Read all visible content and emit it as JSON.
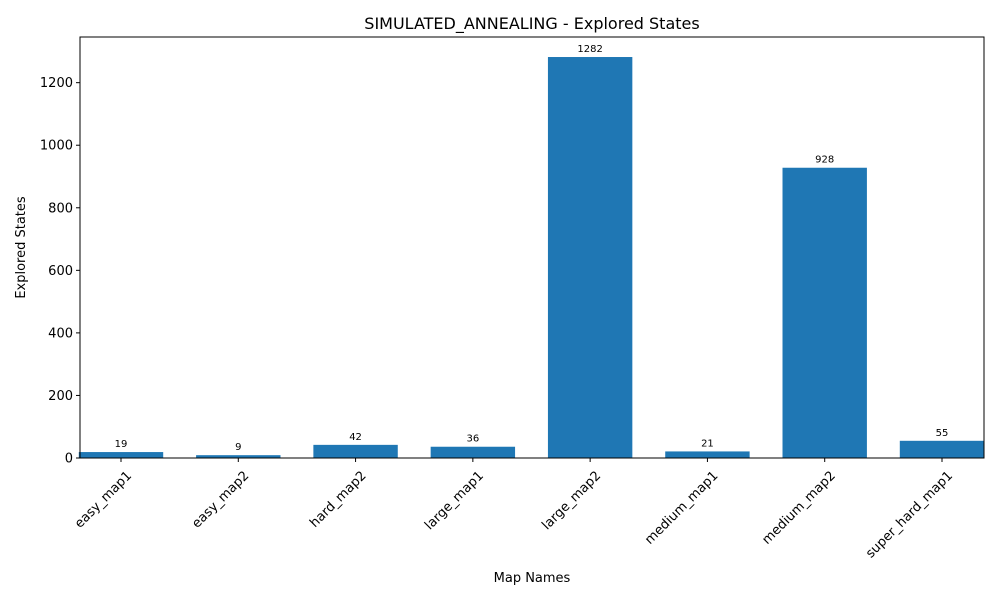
{
  "chart_data": {
    "type": "bar",
    "title": "SIMULATED_ANNEALING - Explored States",
    "xlabel": "Map Names",
    "ylabel": "Explored States",
    "categories": [
      "easy_map1",
      "easy_map2",
      "hard_map2",
      "large_map1",
      "large_map2",
      "medium_map1",
      "medium_map2",
      "super_hard_map1"
    ],
    "values": [
      19,
      9,
      42,
      36,
      1282,
      21,
      928,
      55
    ],
    "data_labels": [
      "19",
      "9",
      "42",
      "36",
      "1282",
      "21",
      "928",
      "55"
    ],
    "ylim": [
      0,
      1346
    ],
    "yticks": [
      0,
      200,
      400,
      600,
      800,
      1000,
      1200
    ],
    "ytick_labels": [
      "0",
      "200",
      "400",
      "600",
      "800",
      "1000",
      "1200"
    ],
    "grid": false,
    "legend": "none",
    "bar_color": "#1f77b4"
  }
}
